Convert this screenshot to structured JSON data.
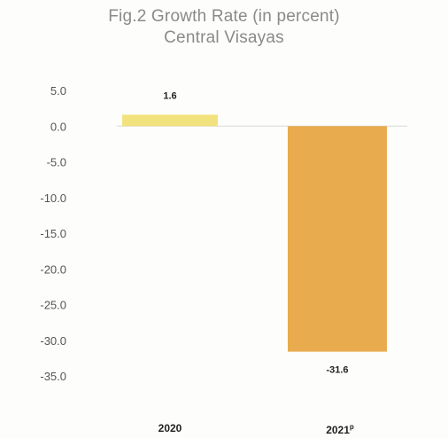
{
  "chart_data": {
    "type": "bar",
    "title_lines": [
      "Fig.2 Growth Rate (in percent)",
      "Central Visayas"
    ],
    "categories": [
      "2020",
      "2021"
    ],
    "category_superscripts": [
      "",
      "p"
    ],
    "values": [
      1.6,
      -31.6
    ],
    "data_labels": [
      "1.6",
      "-31.6"
    ],
    "bar_colors": [
      "#f2e27d",
      "#e8ac4f"
    ],
    "ylim": [
      -35.0,
      5.0
    ],
    "y_ticks": [
      "5.0",
      "0.0",
      "-5.0",
      "-10.0",
      "-15.0",
      "-20.0",
      "-25.0",
      "-30.0",
      "-35.0"
    ],
    "xlabel": "",
    "ylabel": "",
    "grid": false,
    "legend": "none"
  },
  "colors": {
    "title": "#8a8a8a",
    "axis_text": "#555555",
    "label_text": "#222222",
    "baseline": "#d9d9d9"
  }
}
